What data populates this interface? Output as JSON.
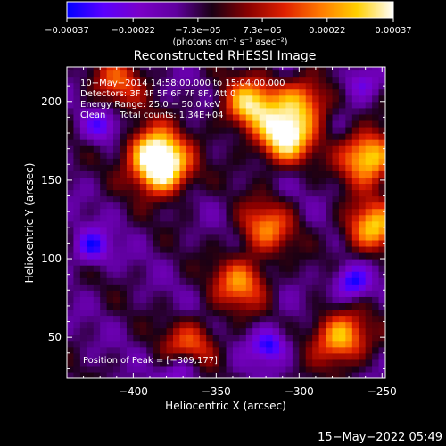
{
  "chart_data": {
    "type": "heatmap",
    "title": "Reconstructed RHESSI Image",
    "xlabel": "Heliocentric X (arcsec)",
    "ylabel": "Heliocentric Y (arcsec)",
    "xlim": [
      -440,
      -248
    ],
    "ylim": [
      24,
      222
    ],
    "x_ticks": [
      -400,
      -350,
      -300,
      -250
    ],
    "x_tick_labels": [
      "−400",
      "−350",
      "−300",
      "−250"
    ],
    "y_ticks": [
      50,
      100,
      150,
      200
    ],
    "y_tick_labels": [
      "50",
      "100",
      "150",
      "200"
    ],
    "colorbar": {
      "ticks": [
        -0.00037,
        -0.00022,
        -7.3e-05,
        7.3e-05,
        0.00022,
        0.00037
      ],
      "tick_labels": [
        "−0.00037",
        "−0.00022",
        "−7.3e−05",
        "7.3e−05",
        "0.00022",
        "0.00037"
      ],
      "unit_label": "(photons cm⁻² s⁻¹ asec⁻²)",
      "range": [
        -0.00037,
        0.00037
      ],
      "colors": [
        "#0000ff",
        "#5a00ff",
        "#7a00c8",
        "#6000a0",
        "#1a0014",
        "#8a0000",
        "#e02000",
        "#ff7a00",
        "#ffd000",
        "#ffffff"
      ]
    },
    "annotations": [
      "10−May−2014 14:58:00.000 to 15:04:00.000",
      "Detectors: 3F 4F 5F 6F 7F 8F, Att 0",
      "Energy Range: 25.0 − 50.0 keV",
      "Clean     Total counts: 1.34E+04"
    ],
    "peak_label": "Position of Peak = [−309,177]",
    "peak": [
      -309,
      177
    ],
    "hot_regions": [
      {
        "x": -382,
        "y": 157,
        "strength": 1.0
      },
      {
        "x": -388,
        "y": 170,
        "strength": 0.75
      },
      {
        "x": -309,
        "y": 177,
        "strength": 1.0
      },
      {
        "x": -330,
        "y": 198,
        "strength": 0.85
      },
      {
        "x": -298,
        "y": 200,
        "strength": 0.7
      },
      {
        "x": -258,
        "y": 165,
        "strength": 0.95
      },
      {
        "x": -256,
        "y": 120,
        "strength": 0.8
      },
      {
        "x": -320,
        "y": 120,
        "strength": 0.6
      },
      {
        "x": -335,
        "y": 85,
        "strength": 0.65
      },
      {
        "x": -275,
        "y": 50,
        "strength": 0.85
      },
      {
        "x": -365,
        "y": 45,
        "strength": 0.55
      },
      {
        "x": -410,
        "y": 212,
        "strength": 0.5
      }
    ],
    "cold_regions": [
      {
        "x": -425,
        "y": 108,
        "strength": 0.8
      },
      {
        "x": -420,
        "y": 185,
        "strength": 0.6
      },
      {
        "x": -318,
        "y": 45,
        "strength": 0.9
      },
      {
        "x": -268,
        "y": 85,
        "strength": 0.9
      },
      {
        "x": -370,
        "y": 30,
        "strength": 0.7
      },
      {
        "x": -262,
        "y": 212,
        "strength": 0.6
      }
    ]
  },
  "footer": {
    "timestamp": "15−May−2022 05:49"
  }
}
